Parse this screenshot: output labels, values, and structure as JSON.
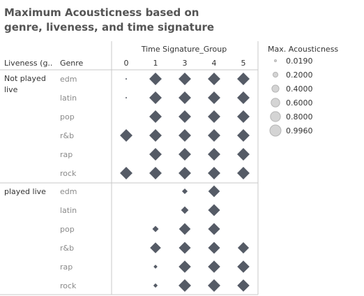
{
  "chart_data": {
    "type": "scatter",
    "mark": "diamond",
    "title": "Maximum Acousticness based on genre, liveness, and time signature",
    "column_field": "Time Signature_Group",
    "columns": [
      "0",
      "1",
      "3",
      "4",
      "5"
    ],
    "row_field_liveness": "Liveness (g..",
    "row_field_genre": "Genre",
    "groups": [
      {
        "liveness": "Not played live",
        "rows": [
          {
            "genre": "edm",
            "values": [
              0.02,
              0.99,
              0.99,
              0.99,
              0.99
            ]
          },
          {
            "genre": "latin",
            "values": [
              0.02,
              0.99,
              0.99,
              0.99,
              0.99
            ]
          },
          {
            "genre": "pop",
            "values": [
              null,
              0.99,
              0.99,
              0.99,
              0.99
            ]
          },
          {
            "genre": "r&b",
            "values": [
              0.99,
              0.99,
              0.99,
              0.99,
              0.99
            ]
          },
          {
            "genre": "rap",
            "values": [
              null,
              0.99,
              0.99,
              0.99,
              0.99
            ]
          },
          {
            "genre": "rock",
            "values": [
              0.99,
              0.99,
              0.99,
              0.99,
              0.99
            ]
          }
        ]
      },
      {
        "liveness": "played live",
        "rows": [
          {
            "genre": "edm",
            "values": [
              null,
              null,
              0.2,
              0.85,
              null
            ]
          },
          {
            "genre": "latin",
            "values": [
              null,
              null,
              0.35,
              0.9,
              null
            ]
          },
          {
            "genre": "pop",
            "values": [
              null,
              0.25,
              0.85,
              0.9,
              null
            ]
          },
          {
            "genre": "r&b",
            "values": [
              null,
              0.75,
              0.9,
              0.9,
              0.8
            ]
          },
          {
            "genre": "rap",
            "values": [
              null,
              0.1,
              0.95,
              0.95,
              0.95
            ]
          },
          {
            "genre": "rock",
            "values": [
              null,
              0.12,
              0.99,
              0.99,
              0.95
            ]
          }
        ]
      }
    ],
    "size_legend": {
      "title": "Max. Acousticness",
      "entries": [
        "0.0190",
        "0.2000",
        "0.4000",
        "0.6000",
        "0.8000",
        "0.9960"
      ],
      "entry_values": [
        0.019,
        0.2,
        0.4,
        0.6,
        0.8,
        0.996
      ]
    },
    "colors": {
      "mark": "#555b66",
      "legend_fill": "#d4d4d4",
      "legend_stroke": "#b5b5b5",
      "grid": "#c8c8c8"
    }
  }
}
